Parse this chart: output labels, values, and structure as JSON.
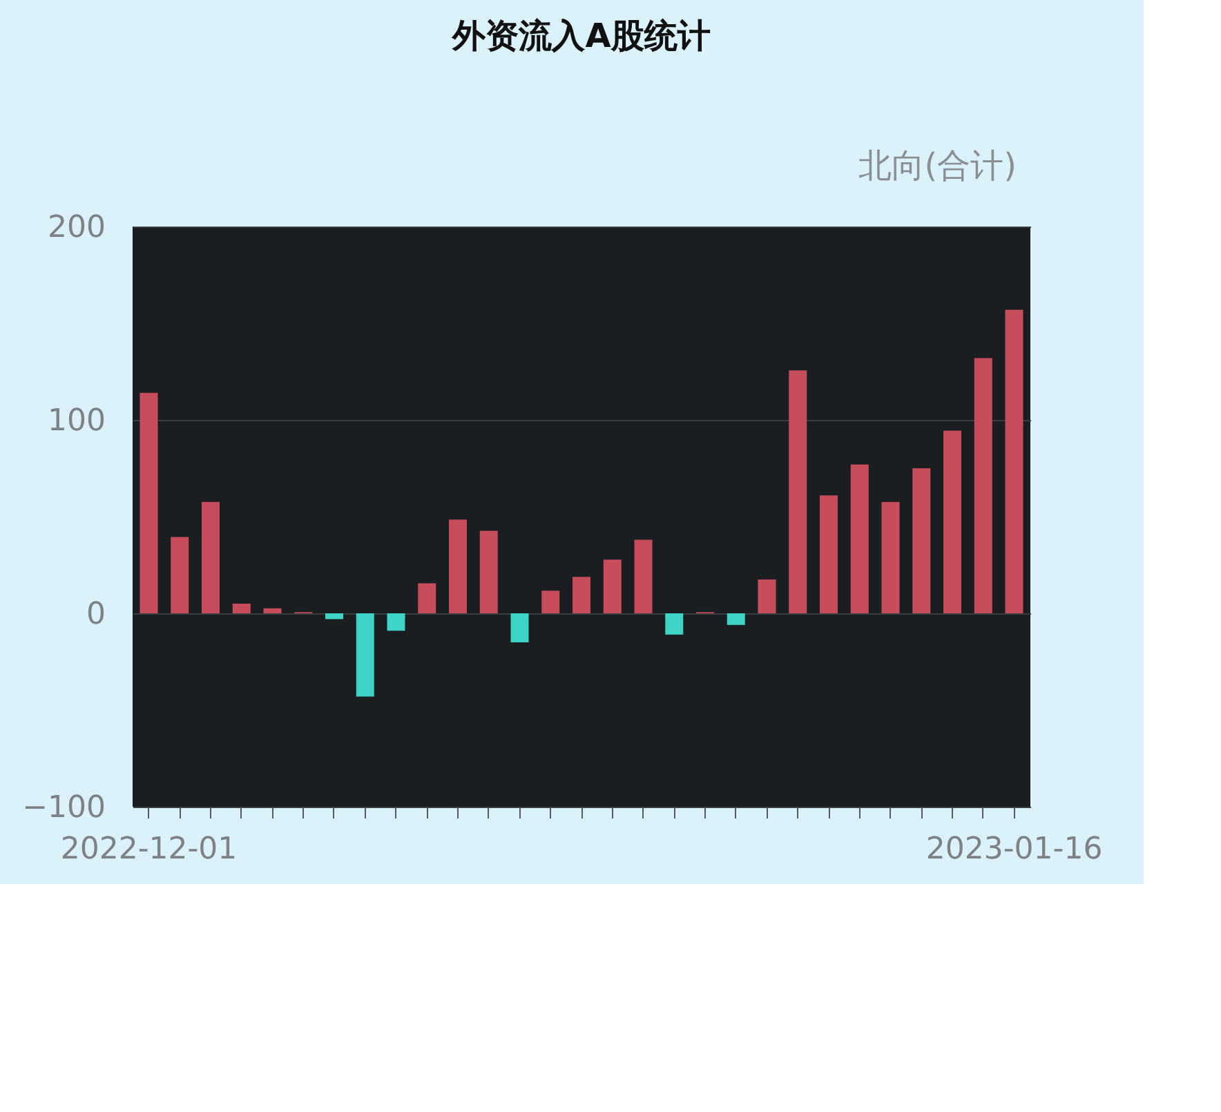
{
  "chart_data": {
    "type": "bar",
    "title": "外资流入A股统计",
    "annotations": [
      "北向(合计)"
    ],
    "categories": [
      "2022-12-01",
      null,
      null,
      null,
      null,
      null,
      null,
      null,
      null,
      null,
      null,
      null,
      null,
      null,
      null,
      null,
      null,
      null,
      null,
      null,
      null,
      null,
      null,
      null,
      null,
      null,
      null,
      null,
      "2023-01-16"
    ],
    "values": [
      114,
      39.5,
      57.6,
      5,
      2.6,
      0.6,
      -3,
      -43,
      -9,
      15.5,
      48.5,
      42.7,
      -15,
      11.7,
      18.8,
      27.8,
      38,
      -11,
      0.6,
      -6,
      17.5,
      125.6,
      61,
      77,
      57.6,
      75,
      94.5,
      132,
      157
    ],
    "colors": [
      "#c74d5c",
      "#c74d5c",
      "#c74d5c",
      "#c74d5c",
      "#c74d5c",
      "#c74d5c",
      "#3dd3c6",
      "#3dd3c6",
      "#3dd3c6",
      "#c74d5c",
      "#c74d5c",
      "#c74d5c",
      "#3dd3c6",
      "#c74d5c",
      "#c74d5c",
      "#c74d5c",
      "#c74d5c",
      "#3dd3c6",
      "#c74d5c",
      "#3dd3c6",
      "#c74d5c",
      "#c74d5c",
      "#c74d5c",
      "#c74d5c",
      "#c74d5c",
      "#c74d5c",
      "#c74d5c",
      "#c74d5c",
      "#c74d5c"
    ],
    "ylim": [
      -100,
      200
    ],
    "yticks": [
      -100,
      0,
      100,
      200
    ],
    "grid": "y"
  }
}
